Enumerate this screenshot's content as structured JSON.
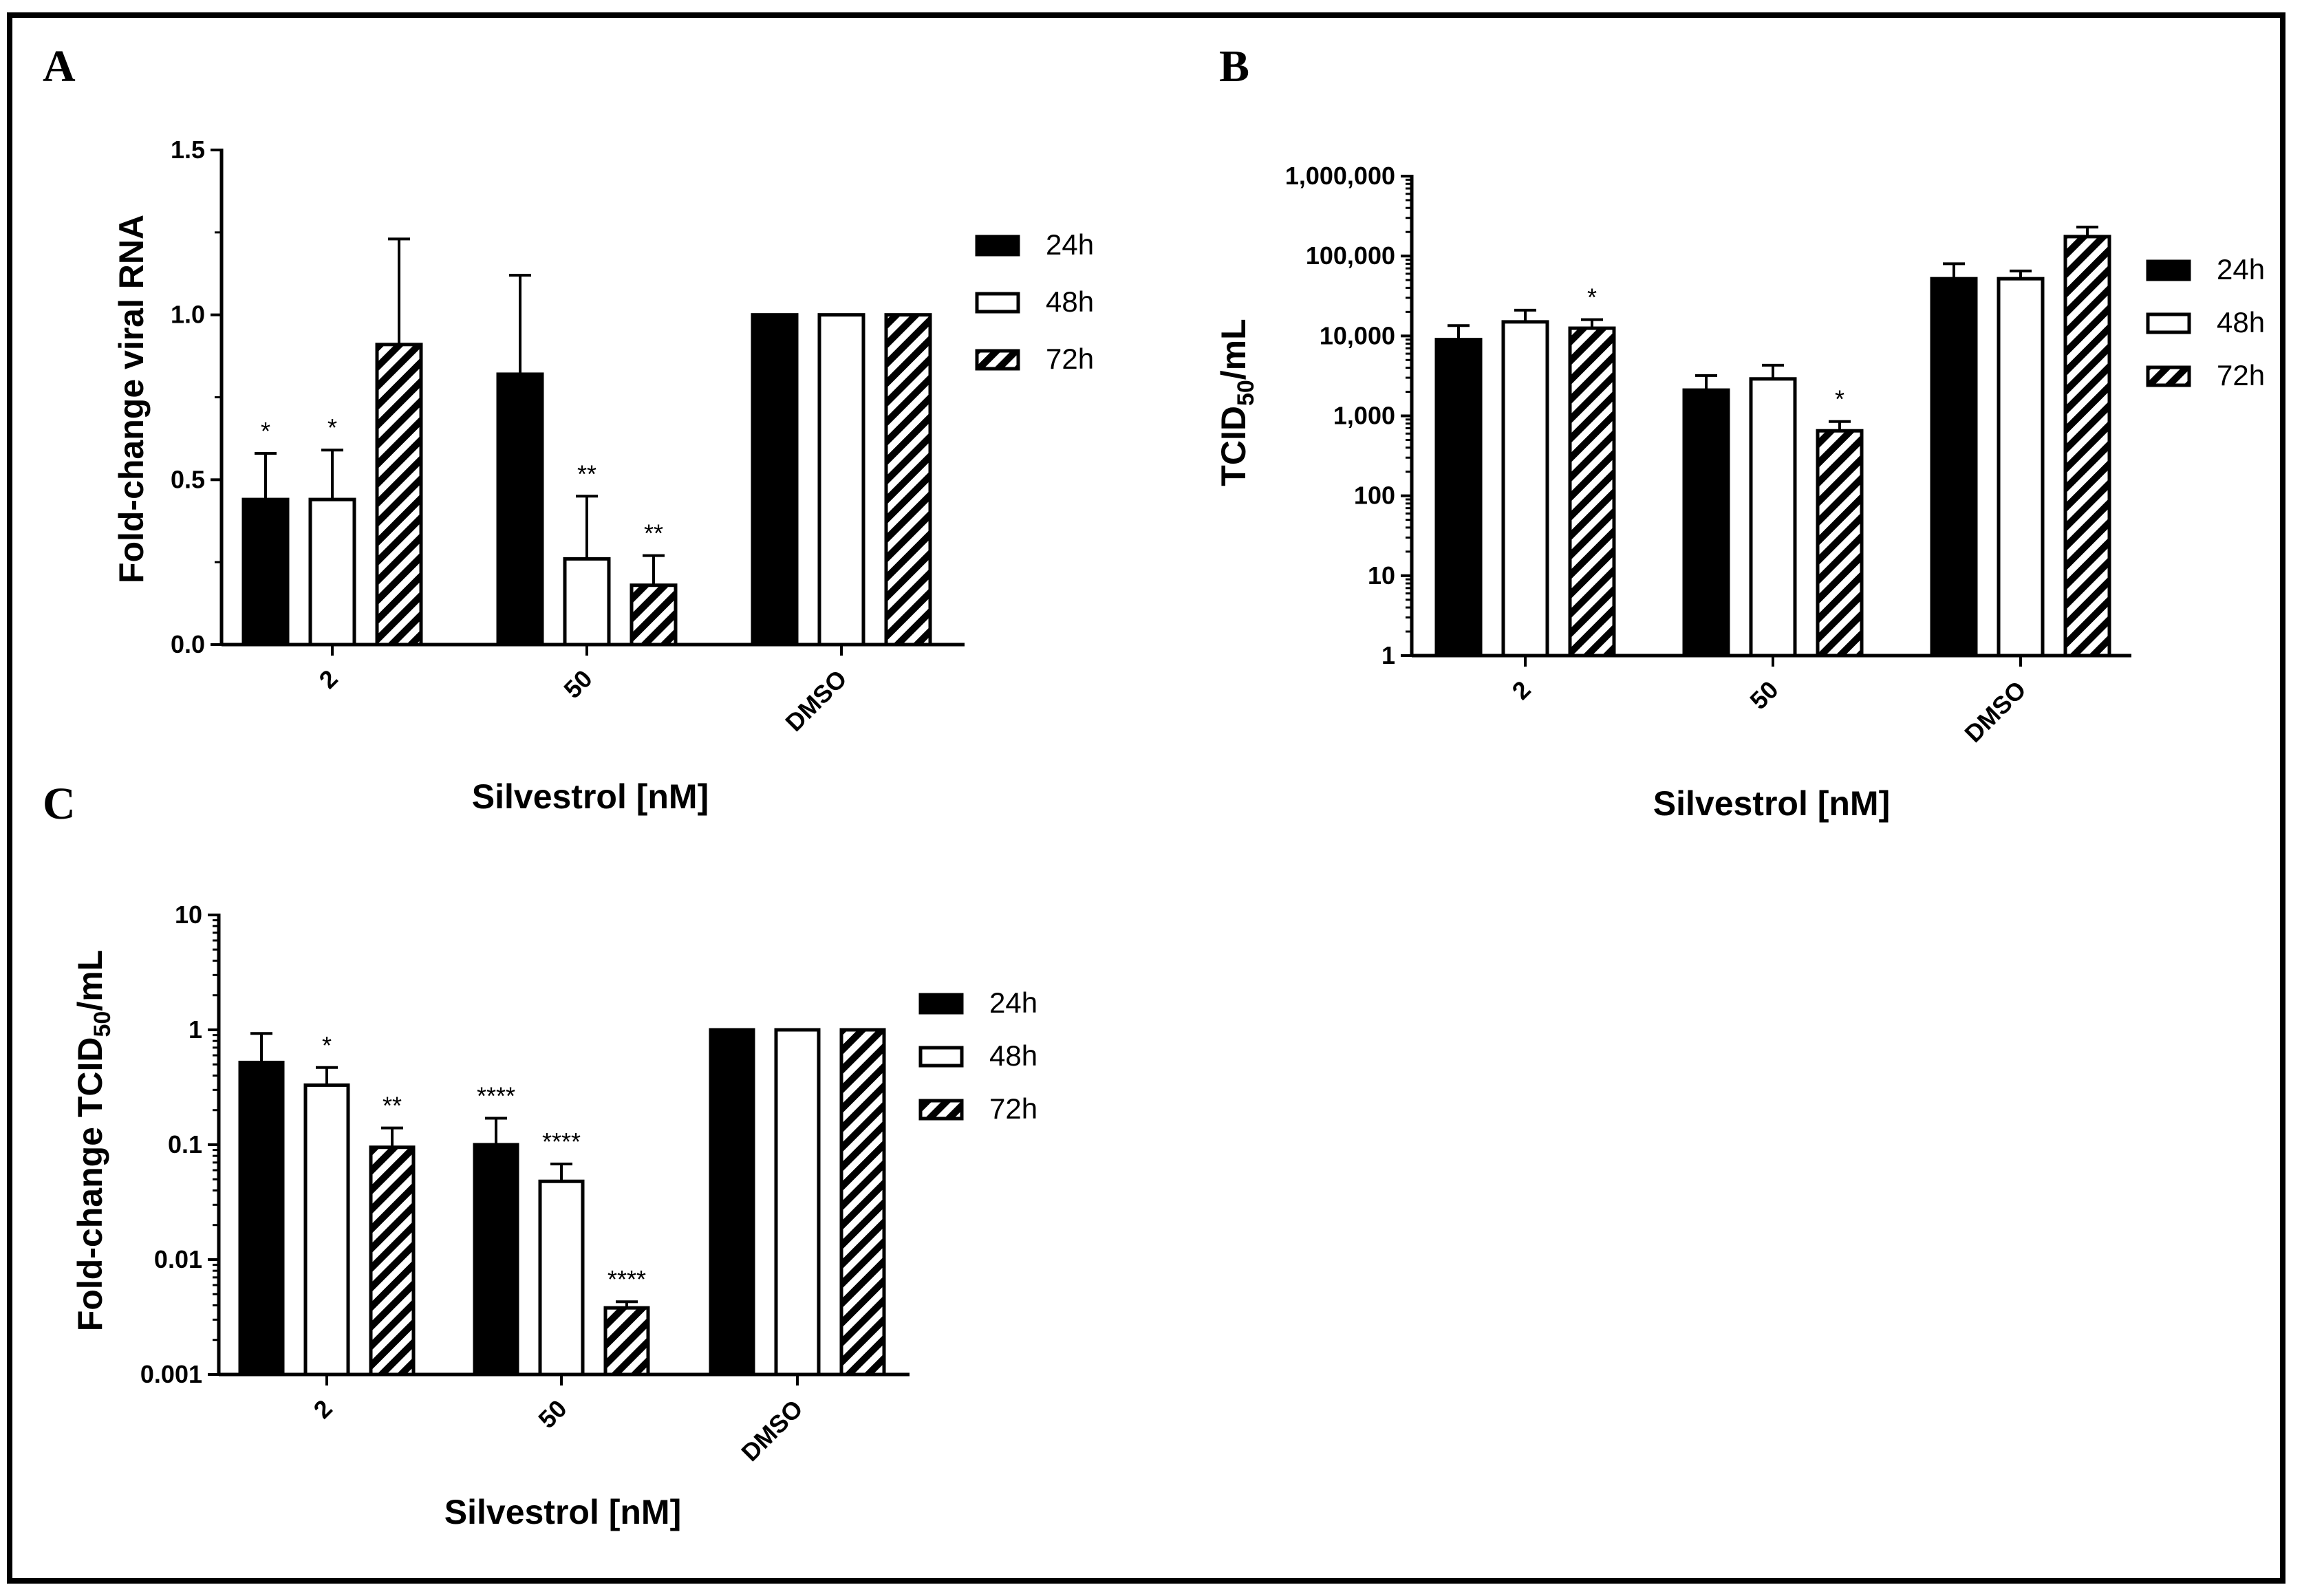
{
  "chart_data": [
    {
      "panel": "A",
      "type": "bar",
      "scale": "linear",
      "categories": [
        "2",
        "50",
        "DMSO"
      ],
      "xlabel": "Silvestrol [nM]",
      "ylabel": "Fold-change viral RNA",
      "ylim": [
        0,
        1.5
      ],
      "ticks": [
        0,
        0.5,
        1.0,
        1.5
      ],
      "tick_labels": [
        "0.0",
        "0.5",
        "1.0",
        "1.5"
      ],
      "legend_position": "right",
      "series": [
        {
          "name": "24h",
          "style": "solid",
          "values": [
            0.44,
            0.82,
            1.0
          ],
          "errors": [
            0.58,
            1.12,
            1.0
          ],
          "stars": [
            "*",
            "",
            ""
          ]
        },
        {
          "name": "48h",
          "style": "open",
          "values": [
            0.44,
            0.26,
            1.0
          ],
          "errors": [
            0.59,
            0.45,
            1.0
          ],
          "stars": [
            "*",
            "**",
            ""
          ]
        },
        {
          "name": "72h",
          "style": "hatched",
          "values": [
            0.91,
            0.18,
            1.0
          ],
          "errors": [
            1.23,
            0.27,
            1.0
          ],
          "stars": [
            "",
            "**",
            ""
          ]
        }
      ]
    },
    {
      "panel": "B",
      "type": "bar",
      "scale": "log",
      "categories": [
        "2",
        "50",
        "DMSO"
      ],
      "xlabel": "Silvestrol [nM]",
      "ylabel_main": "TCID",
      "ylabel_sub": "50",
      "ylabel_tail": "/mL",
      "ylim": [
        1,
        1000000
      ],
      "ticks": [
        1,
        10,
        100,
        1000,
        10000,
        100000,
        1000000
      ],
      "tick_labels": [
        "1",
        "10",
        "100",
        "1,000",
        "10,000",
        "100,000",
        "1,000,000"
      ],
      "legend_position": "right",
      "series": [
        {
          "name": "24h",
          "style": "solid",
          "values": [
            9000,
            2100,
            52000
          ],
          "errors": [
            13500,
            3200,
            80000
          ],
          "stars": [
            "",
            "",
            ""
          ]
        },
        {
          "name": "48h",
          "style": "open",
          "values": [
            15000,
            2900,
            52000
          ],
          "errors": [
            21000,
            4300,
            65000
          ],
          "stars": [
            "",
            "",
            ""
          ]
        },
        {
          "name": "72h",
          "style": "hatched",
          "values": [
            12500,
            650,
            175000
          ],
          "errors": [
            16000,
            850,
            230000
          ],
          "stars": [
            "*",
            "*",
            ""
          ]
        }
      ]
    },
    {
      "panel": "C",
      "type": "bar",
      "scale": "log",
      "categories": [
        "2",
        "50",
        "DMSO"
      ],
      "xlabel": "Silvestrol [nM]",
      "ylabel_main": "Fold-change TCID",
      "ylabel_sub": "50",
      "ylabel_tail": "/mL",
      "ylim": [
        0.001,
        10
      ],
      "ticks": [
        0.001,
        0.01,
        0.1,
        1,
        10
      ],
      "tick_labels": [
        "0.001",
        "0.01",
        "0.1",
        "1",
        "10"
      ],
      "legend_position": "right",
      "series": [
        {
          "name": "24h",
          "style": "solid",
          "values": [
            0.52,
            0.1,
            1.0
          ],
          "errors": [
            0.93,
            0.17,
            1.0
          ],
          "stars": [
            "",
            "****",
            ""
          ]
        },
        {
          "name": "48h",
          "style": "open",
          "values": [
            0.33,
            0.048,
            1.0
          ],
          "errors": [
            0.47,
            0.068,
            1.0
          ],
          "stars": [
            "*",
            "****",
            ""
          ]
        },
        {
          "name": "72h",
          "style": "hatched",
          "values": [
            0.095,
            0.0038,
            1.0
          ],
          "errors": [
            0.14,
            0.0043,
            1.0
          ],
          "stars": [
            "**",
            "****",
            ""
          ]
        }
      ]
    }
  ]
}
